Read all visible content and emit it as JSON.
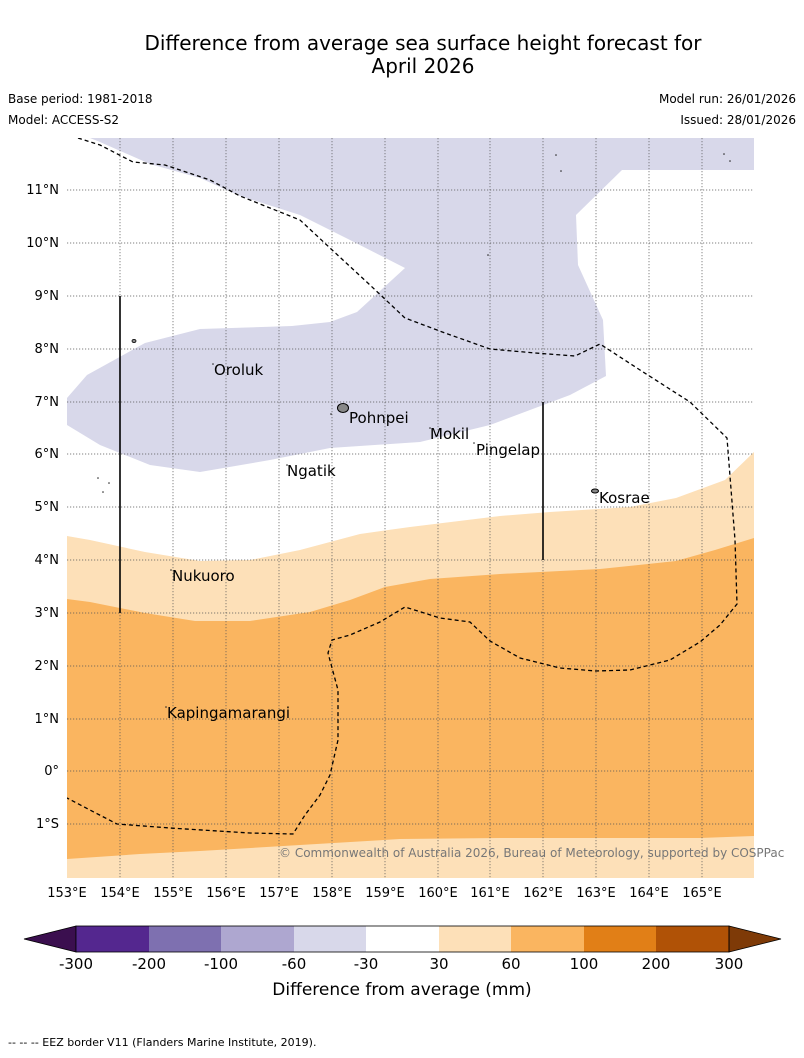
{
  "title_line1": "Difference from average sea surface height forecast for",
  "title_line2": "April 2026",
  "base_period": "Base period: 1981-2018",
  "model": "Model: ACCESS-S2",
  "model_run": "Model run: 26/01/2026",
  "issued": "Issued: 28/01/2026",
  "lat_labels": [
    "11°N",
    "10°N",
    "9°N",
    "8°N",
    "7°N",
    "6°N",
    "5°N",
    "4°N",
    "3°N",
    "2°N",
    "1°N",
    "0°",
    "1°S"
  ],
  "lon_labels": [
    "153°E",
    "154°E",
    "155°E",
    "156°E",
    "157°E",
    "158°E",
    "159°E",
    "160°E",
    "161°E",
    "162°E",
    "163°E",
    "164°E",
    "165°E"
  ],
  "places": [
    "Oroluk",
    "Pohnpei",
    "Mokil",
    "Pingelap",
    "Ngatik",
    "Kosrae",
    "Nukuoro",
    "Kapingamarangi"
  ],
  "copyright": "© Commonwealth of Australia 2026, Bureau of Meteorology, supported by COSPPac",
  "legend": {
    "title": "Difference from average (mm)",
    "ticks": [
      "-300",
      "-200",
      "-100",
      "-60",
      "-30",
      "30",
      "60",
      "100",
      "200",
      "300"
    ],
    "colors": [
      "#3b0f4f",
      "#54278f",
      "#7e70b0",
      "#aea7d0",
      "#d8d8ea",
      "#ffffff",
      "#fde0b8",
      "#fab560",
      "#e17f17",
      "#b05206",
      "#7e3a07"
    ]
  },
  "footnote": "--  --  -- EEZ border V11 (Flanders Marine Institute, 2019)."
}
